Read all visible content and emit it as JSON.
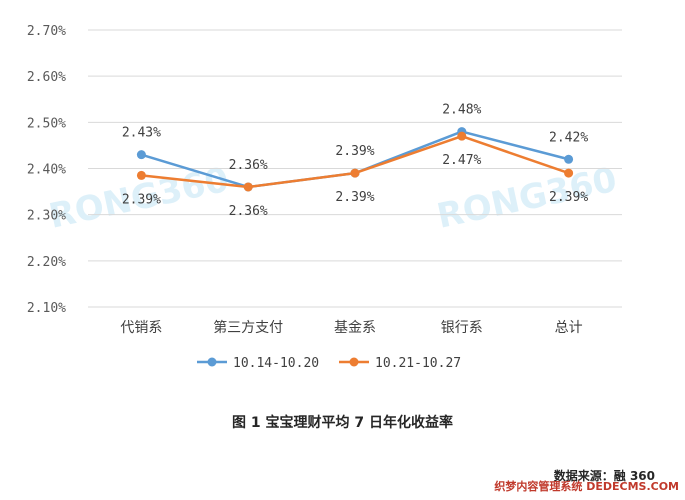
{
  "chart_data": {
    "type": "line",
    "categories": [
      "代销系",
      "第三方支付",
      "基金系",
      "银行系",
      "总计"
    ],
    "series": [
      {
        "name": "10.14-10.20",
        "color": "#5b9bd5",
        "values": [
          2.43,
          2.36,
          2.39,
          2.48,
          2.42
        ],
        "labels": [
          "2.43%",
          "2.36%",
          "2.39%",
          "2.48%",
          "2.42%"
        ]
      },
      {
        "name": "10.21-10.27",
        "color": "#ed7d31",
        "values": [
          2.385,
          2.36,
          2.39,
          2.47,
          2.39
        ],
        "labels": [
          "2.39%",
          "2.36%",
          "2.39%",
          "2.47%",
          "2.39%"
        ]
      }
    ],
    "yticks": [
      "2.70%",
      "2.60%",
      "2.50%",
      "2.40%",
      "2.30%",
      "2.20%",
      "2.10%"
    ],
    "ylim": [
      2.1,
      2.7
    ],
    "grid": true,
    "legend_position": "bottom",
    "title": "图 1  宝宝理财平均 7 日年化收益率"
  },
  "watermarks": [
    "RONG360",
    "RONG360"
  ],
  "caption": "图 1  宝宝理财平均 7 日年化收益率",
  "source": "数据来源：融 360",
  "site_mark": "织梦内容管理系统 DEDECMS.COM"
}
